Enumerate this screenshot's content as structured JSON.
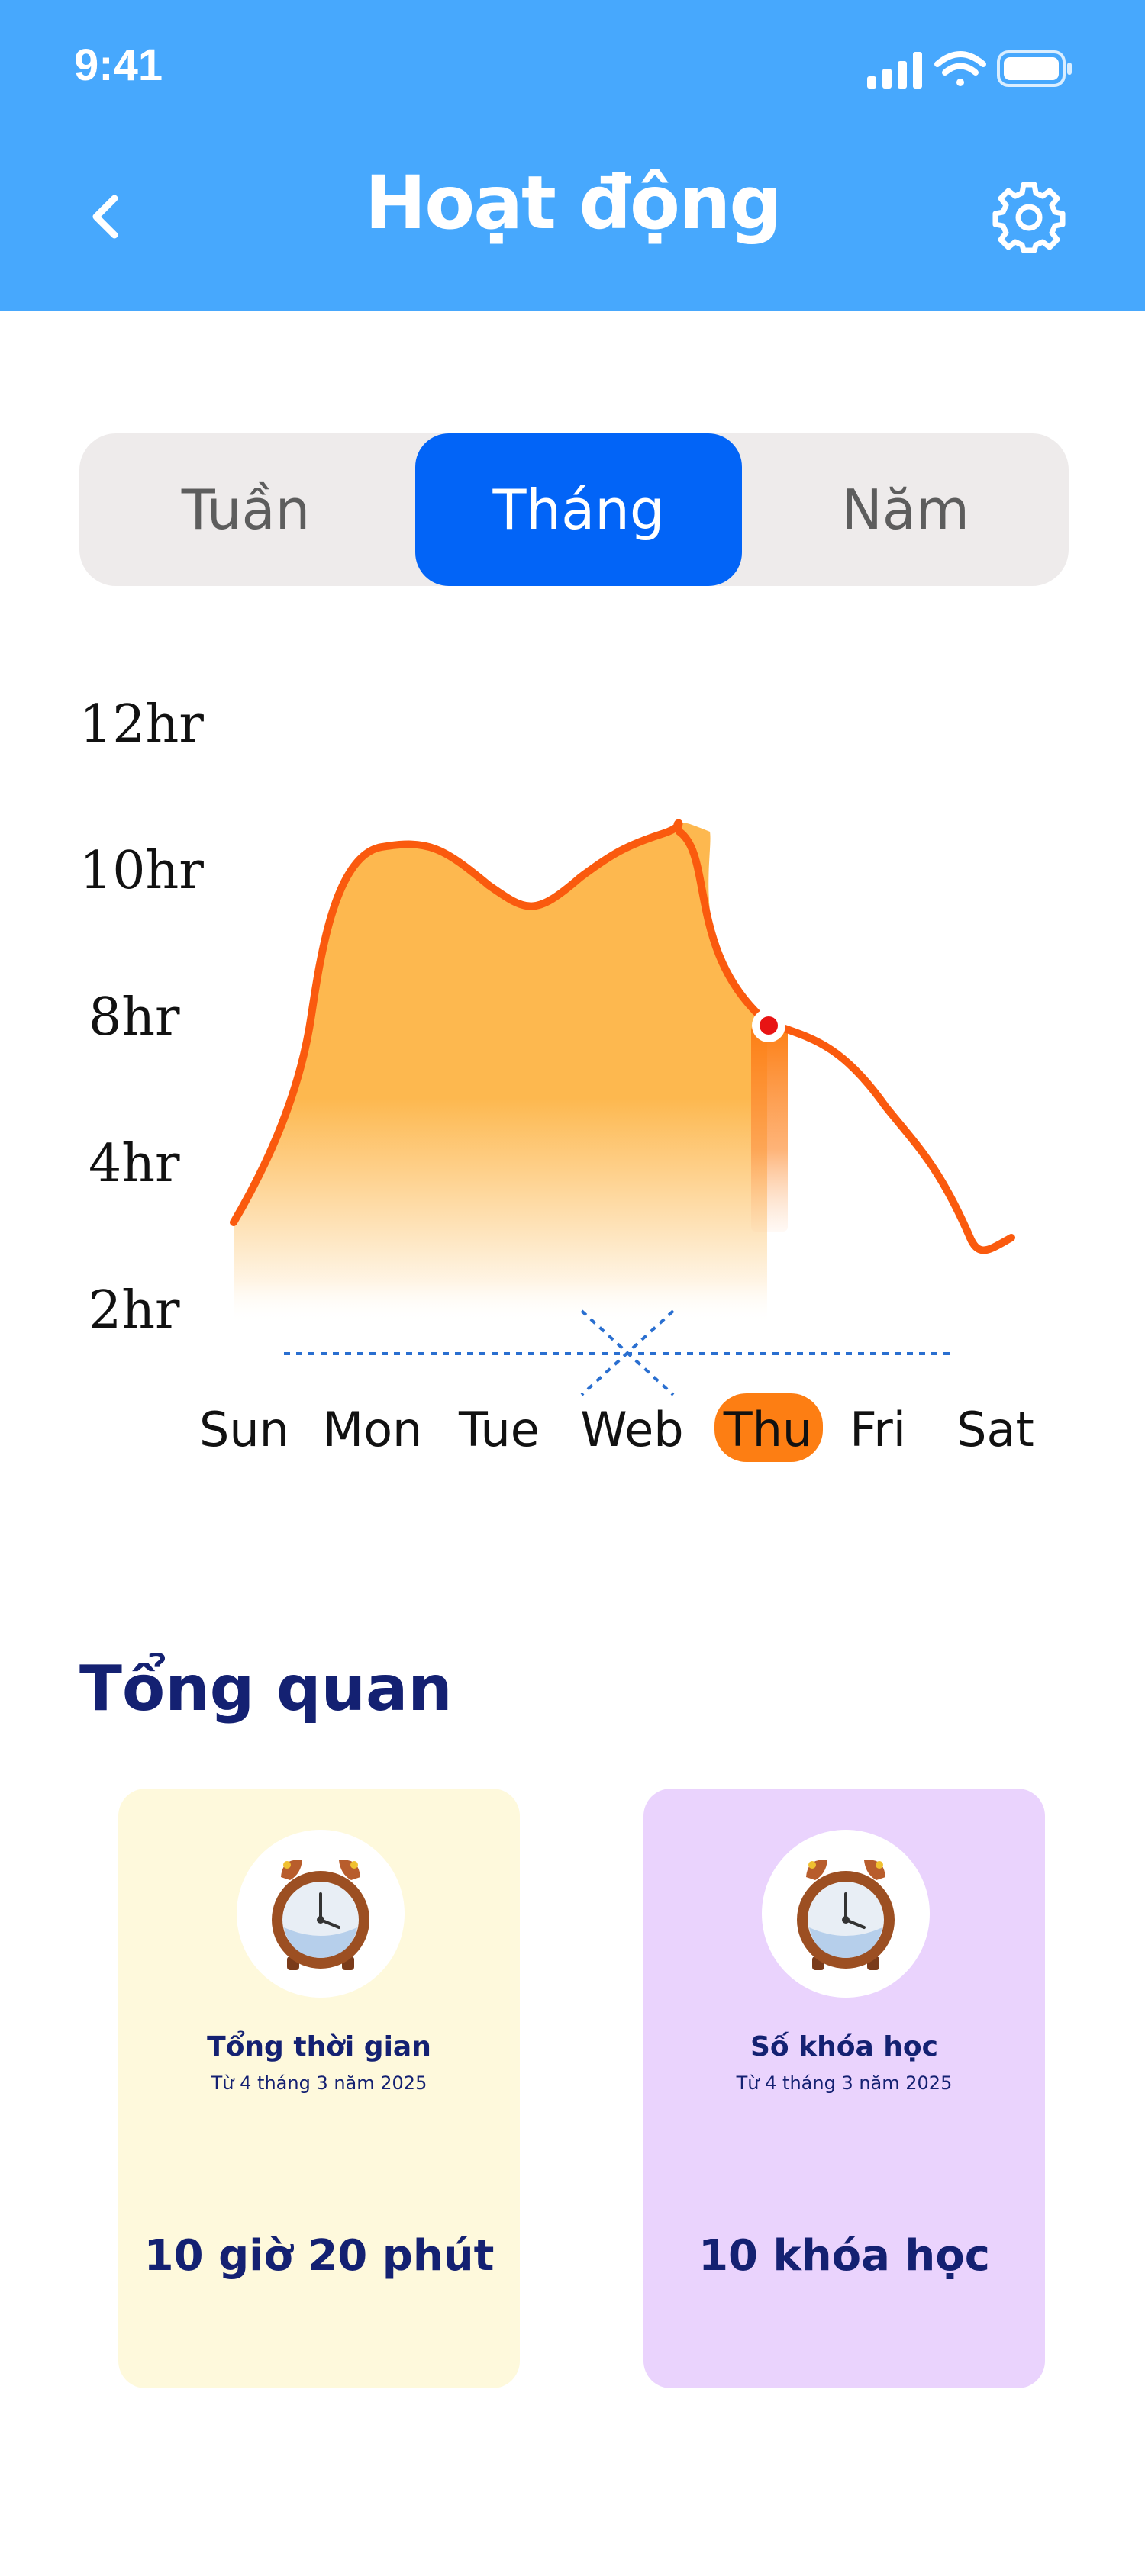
{
  "status_bar": {
    "time": "9:41"
  },
  "header": {
    "title": "Hoạt động"
  },
  "tabs": [
    {
      "label": "Tuần",
      "active": false
    },
    {
      "label": "Tháng",
      "active": true
    },
    {
      "label": "Năm",
      "active": false
    }
  ],
  "chart_data": {
    "type": "area",
    "y_tick_labels": [
      "12hr",
      "10hr",
      "8hr",
      "4hr",
      "2hr"
    ],
    "categories": [
      "Sun",
      "Mon",
      "Tue",
      "Web",
      "Thu",
      "Fri",
      "Sat"
    ],
    "highlighted_category": "Thu",
    "colors": {
      "line": "#fa5a0e",
      "fill": "#fdb84f",
      "highlight": "#fd7e13",
      "marker": "#e81414",
      "baseline": "#2a6fd0"
    }
  },
  "overview": {
    "title": "Tổng quan",
    "cards": [
      {
        "title": "Tổng thời gian",
        "subtitle": "Từ 4 tháng 3 năm 2025",
        "value": "10 giờ 20 phút",
        "icon": "alarm-clock-icon",
        "color": "#fef9dc"
      },
      {
        "title": "Số khóa học",
        "subtitle": "Từ 4 tháng 3 năm 2025",
        "value": "10 khóa học",
        "icon": "alarm-clock-icon",
        "color": "#ead3fd"
      }
    ]
  }
}
